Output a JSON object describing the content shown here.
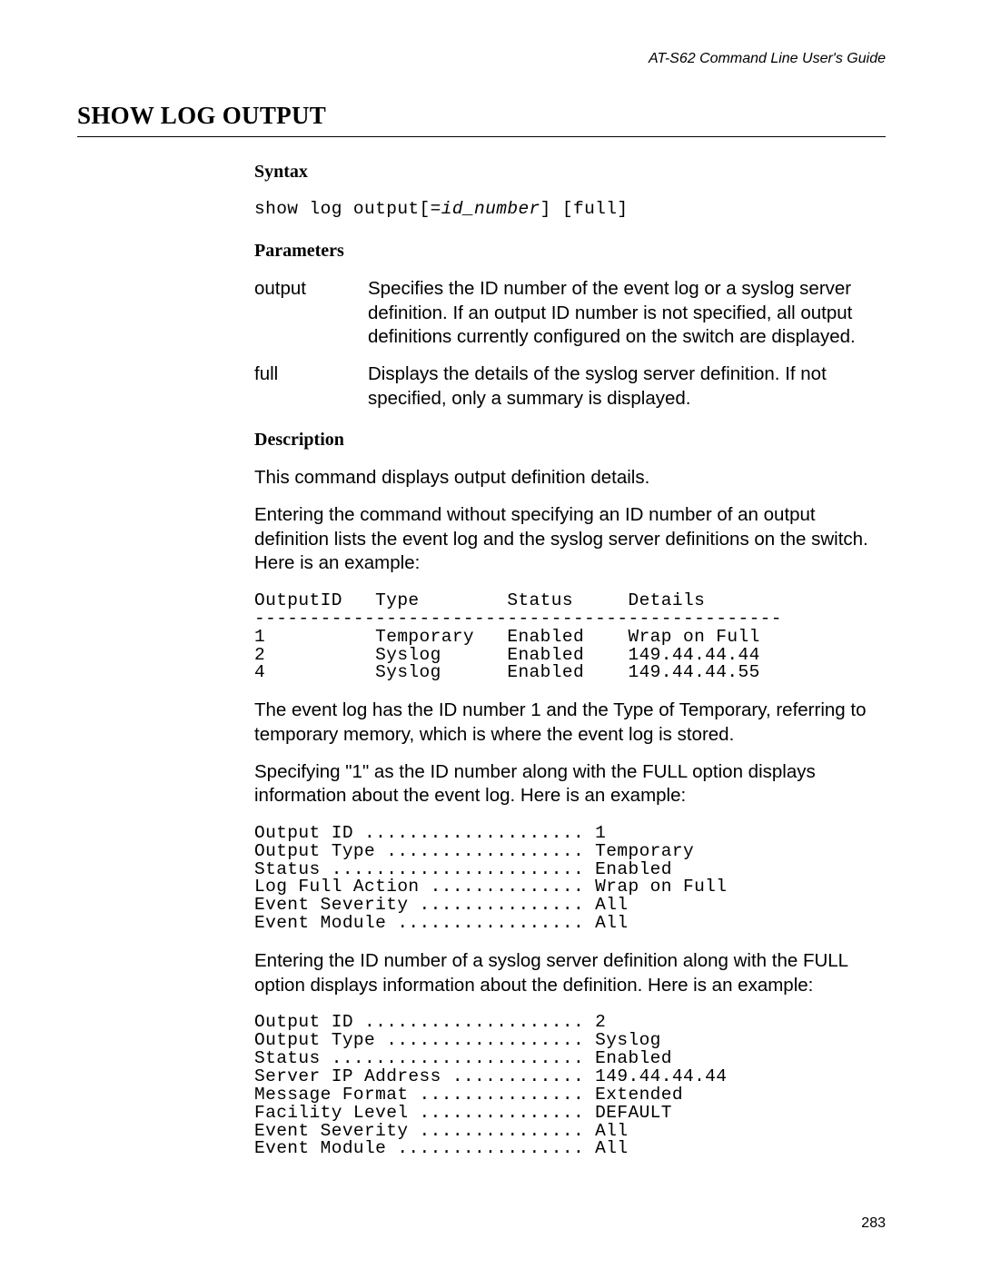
{
  "header": {
    "right": "AT-S62 Command Line User's Guide"
  },
  "title": "SHOW LOG OUTPUT",
  "syntax": {
    "heading": "Syntax",
    "pre": "show log output[=",
    "ital": "id_number",
    "post": "] [full]"
  },
  "parameters": {
    "heading": "Parameters",
    "rows": [
      {
        "name": "output",
        "desc": "Specifies the ID number of the event log or a syslog server definition. If an output ID number is not specified, all output definitions currently configured on the switch are displayed."
      },
      {
        "name": "full",
        "desc": "Displays the details of the syslog server definition. If not specified, only a summary is displayed."
      }
    ]
  },
  "description": {
    "heading": "Description",
    "p1": "This command displays output definition details.",
    "p2": "Entering the command without specifying an ID number of an output definition lists the event log and the syslog server definitions on the switch. Here is an example:",
    "block1": "OutputID   Type        Status     Details\n------------------------------------------------\n1          Temporary   Enabled    Wrap on Full\n2          Syslog      Enabled    149.44.44.44\n4          Syslog      Enabled    149.44.44.55",
    "p3": "The event log has the ID number 1 and the Type of Temporary, referring to temporary memory, which is where the event log is stored.",
    "p4": "Specifying \"1\" as the ID number along with the FULL option displays information about the event log. Here is an example:",
    "block2": "Output ID .................... 1\nOutput Type .................. Temporary\nStatus ....................... Enabled\nLog Full Action .............. Wrap on Full\nEvent Severity ............... All\nEvent Module ................. All",
    "p5": "Entering the ID number of a syslog server definition along with the FULL option displays information about the definition. Here is an example:",
    "block3": "Output ID .................... 2\nOutput Type .................. Syslog\nStatus ....................... Enabled\nServer IP Address ............ 149.44.44.44\nMessage Format ............... Extended\nFacility Level ............... DEFAULT\nEvent Severity ............... All\nEvent Module ................. All"
  },
  "page_number": "283",
  "style": {
    "body_font_size_pt": 15,
    "mono_font_size_pt": 15,
    "heading_font_size_pt": 15,
    "title_font_size_pt": 20,
    "header_font_size_pt": 12,
    "pagenum_font_size_pt": 12,
    "background_color": "#ffffff",
    "text_color": "#000000",
    "rule_color": "#000000"
  }
}
